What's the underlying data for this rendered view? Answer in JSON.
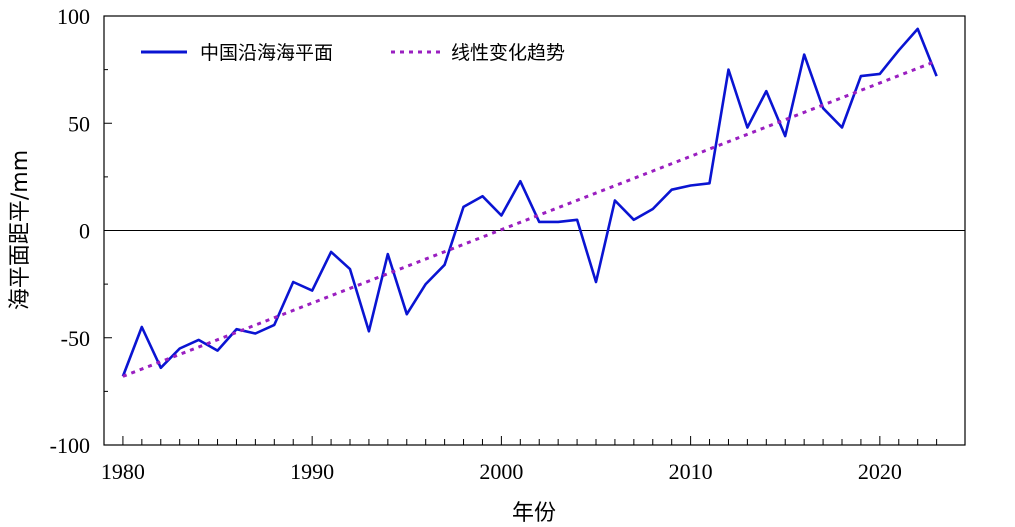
{
  "chart_data": {
    "type": "line",
    "title": "",
    "xlabel": "年份",
    "ylabel": "海平面距平/mm",
    "xlim": [
      1979,
      2024.5
    ],
    "ylim": [
      -100,
      100
    ],
    "xticks": [
      1980,
      1990,
      2000,
      2010,
      2020
    ],
    "yticks": [
      -100,
      -50,
      0,
      50,
      100
    ],
    "xtick_labels": [
      "1980",
      "1990",
      "2000",
      "2010",
      "2020"
    ],
    "ytick_labels": [
      "-100",
      "-50",
      "0",
      "50",
      "100"
    ],
    "zero_line": true,
    "legend_position": "top-left",
    "series": [
      {
        "name": "中国沿海海平面",
        "color": "#0a14d2",
        "style": "solid",
        "x": [
          1980,
          1981,
          1982,
          1983,
          1984,
          1985,
          1986,
          1987,
          1988,
          1989,
          1990,
          1991,
          1992,
          1993,
          1994,
          1995,
          1996,
          1997,
          1998,
          1999,
          2000,
          2001,
          2002,
          2003,
          2004,
          2005,
          2006,
          2007,
          2008,
          2009,
          2010,
          2011,
          2012,
          2013,
          2014,
          2015,
          2016,
          2017,
          2018,
          2019,
          2020,
          2021,
          2022,
          2023
        ],
        "values": [
          -68,
          -45,
          -64,
          -55,
          -51,
          -56,
          -46,
          -48,
          -44,
          -24,
          -28,
          -10,
          -18,
          -47,
          -11,
          -39,
          -25,
          -16,
          11,
          16,
          7,
          23,
          4,
          4,
          5,
          -24,
          14,
          5,
          10,
          19,
          21,
          22,
          75,
          48,
          65,
          44,
          82,
          57,
          48,
          72,
          73,
          84,
          94,
          72
        ]
      },
      {
        "name": "线性变化趋势",
        "color": "#9a1fc0",
        "style": "dashed",
        "x": [
          1980,
          2023
        ],
        "values": [
          -68,
          79
        ]
      }
    ]
  }
}
